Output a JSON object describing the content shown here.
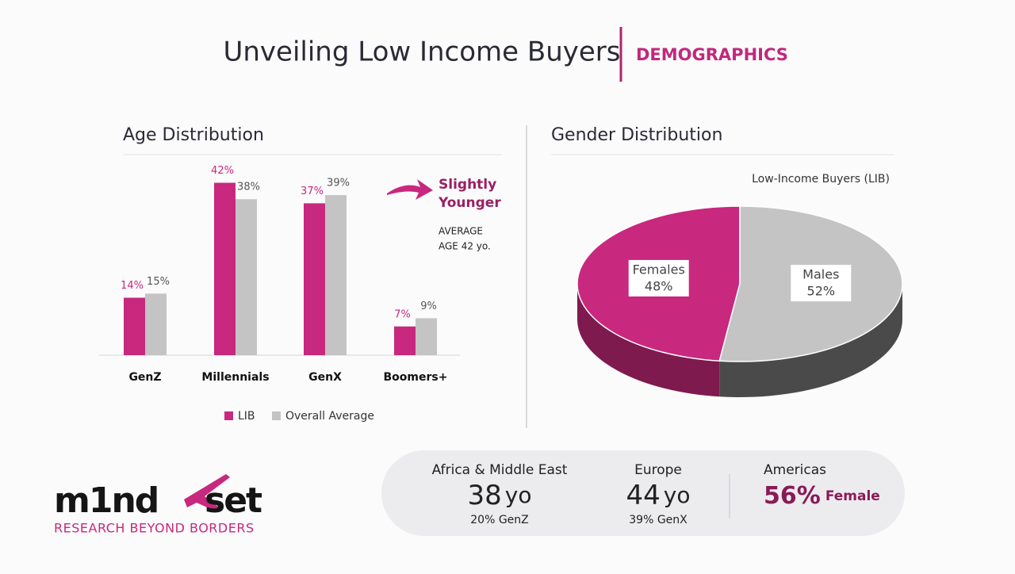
{
  "header": {
    "title": "Unveiling Low Income Buyers",
    "section": "DEMOGRAPHICS"
  },
  "chart_data": [
    {
      "type": "bar",
      "title": "Age Distribution",
      "categories": [
        "GenZ",
        "Millennials",
        "GenX",
        "Boomers+"
      ],
      "series": [
        {
          "name": "LIB",
          "color": "#c8287e",
          "values": [
            14,
            42,
            37,
            7
          ],
          "value_labels": [
            "14%",
            "42%",
            "37%",
            "7%"
          ]
        },
        {
          "name": "Overall Average",
          "color": "#c4c4c4",
          "values": [
            15,
            38,
            39,
            9
          ],
          "value_labels": [
            "15%",
            "38%",
            "39%",
            "9%"
          ]
        }
      ],
      "ylim": [
        0,
        45
      ],
      "legend": "bottom"
    },
    {
      "type": "pie",
      "title": "Gender Distribution",
      "subtitle": "Low-Income Buyers (LIB)",
      "categories": [
        "Females",
        "Males"
      ],
      "values": [
        48,
        52
      ],
      "value_labels": [
        "48%",
        "52%"
      ],
      "colors": [
        "#c8287e",
        "#c4c4c4"
      ],
      "side_colors": [
        "#7e1a4e",
        "#4a4a4a"
      ]
    }
  ],
  "callout": {
    "title": [
      "Slightly",
      "Younger"
    ],
    "note": [
      "AVERAGE",
      "AGE 42 yo."
    ]
  },
  "regions": [
    {
      "name": "Africa & Middle East",
      "value": "38",
      "unit": "yo",
      "detail": "20% GenZ"
    },
    {
      "name": "Europe",
      "value": "44",
      "unit": "yo",
      "detail": "39% GenX"
    },
    {
      "name": "Americas",
      "value": "56%",
      "unit": "Female"
    }
  ],
  "logo": {
    "parts": [
      "m1nd",
      "set"
    ],
    "tagline": "RESEARCH BEYOND BORDERS"
  }
}
